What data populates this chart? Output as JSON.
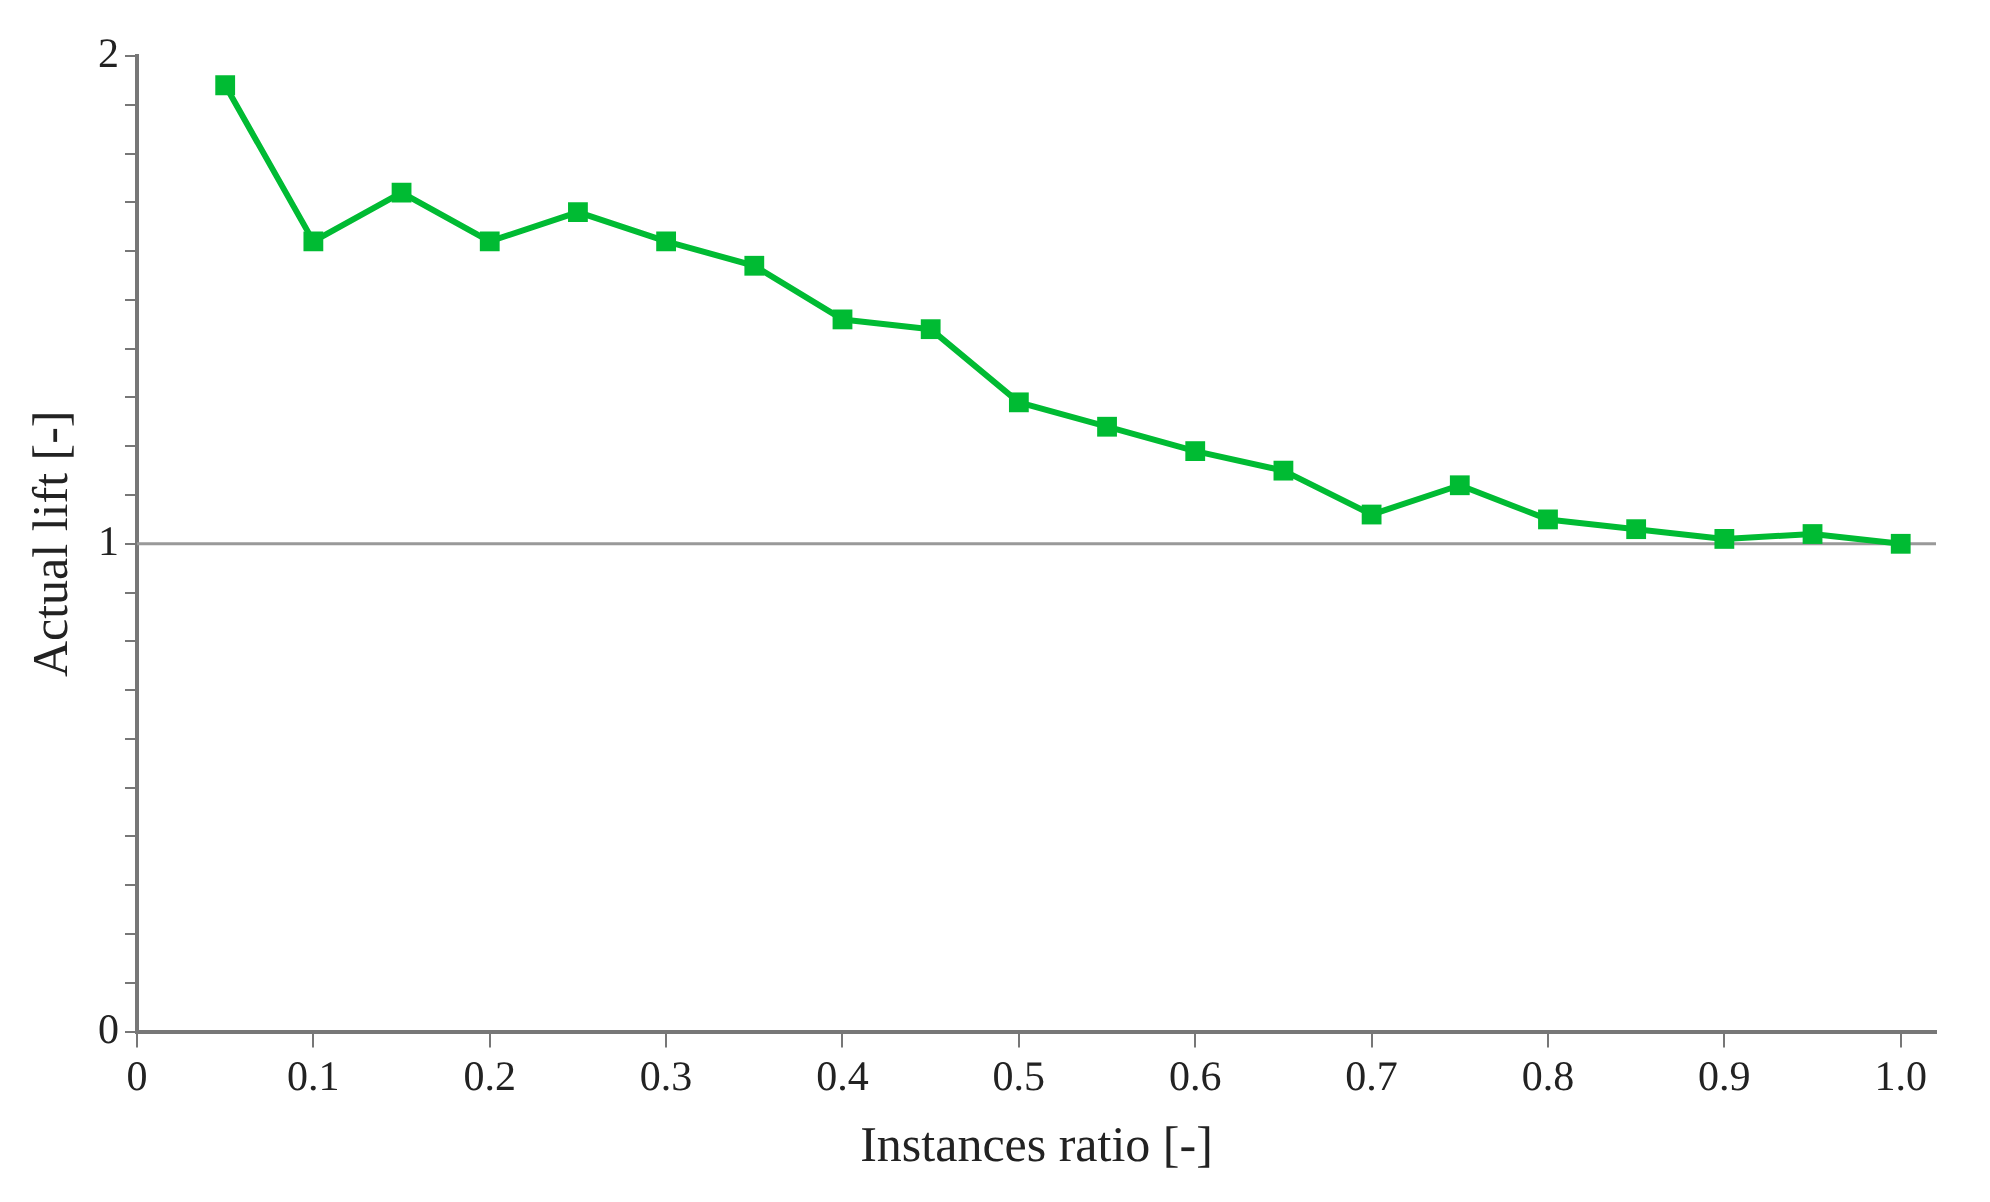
{
  "chart_data": {
    "type": "line",
    "xlabel": "Instances ratio [-]",
    "ylabel": "Actual lift [-]",
    "x": [
      0.05,
      0.1,
      0.15,
      0.2,
      0.25,
      0.3,
      0.35,
      0.4,
      0.45,
      0.5,
      0.55,
      0.6,
      0.65,
      0.7,
      0.75,
      0.8,
      0.85,
      0.9,
      0.95,
      1.0
    ],
    "series": [
      {
        "color": "#00bb33",
        "values": [
          1.94,
          1.62,
          1.72,
          1.62,
          1.68,
          1.62,
          1.57,
          1.46,
          1.44,
          1.29,
          1.24,
          1.19,
          1.15,
          1.06,
          1.12,
          1.05,
          1.03,
          1.01,
          1.02,
          1.0
        ]
      }
    ],
    "xlim": [
      0,
      1.02
    ],
    "xticks": [
      0,
      0.1,
      0.2,
      0.3,
      0.4,
      0.5,
      0.6,
      0.7,
      0.8,
      0.9,
      {
        "value": 1.0,
        "label": "1.0"
      }
    ],
    "ylim": [
      0,
      2
    ],
    "yticks": [
      0,
      {
        "value": 0.1,
        "label": null
      },
      {
        "value": 0.2,
        "label": null
      },
      {
        "value": 0.3,
        "label": null
      },
      {
        "value": 0.4,
        "label": null
      },
      {
        "value": 0.5,
        "label": null
      },
      {
        "value": 0.6,
        "label": null
      },
      {
        "value": 0.7,
        "label": null
      },
      {
        "value": 0.8,
        "label": null
      },
      {
        "value": 0.9,
        "label": null
      },
      1,
      {
        "value": 1.1,
        "label": null
      },
      {
        "value": 1.2,
        "label": null
      },
      {
        "value": 1.3,
        "label": null
      },
      {
        "value": 1.4,
        "label": null
      },
      {
        "value": 1.5,
        "label": null
      },
      {
        "value": 1.6,
        "label": null
      },
      {
        "value": 1.7,
        "label": null
      },
      {
        "value": 1.8,
        "label": null
      },
      {
        "value": 1.9,
        "label": null
      },
      2
    ],
    "ref_lines": [
      {
        "axis": "y",
        "value": 1,
        "color": "#999999"
      }
    ],
    "grid": false,
    "legend": false,
    "marker": "square",
    "line_style": "solid"
  }
}
